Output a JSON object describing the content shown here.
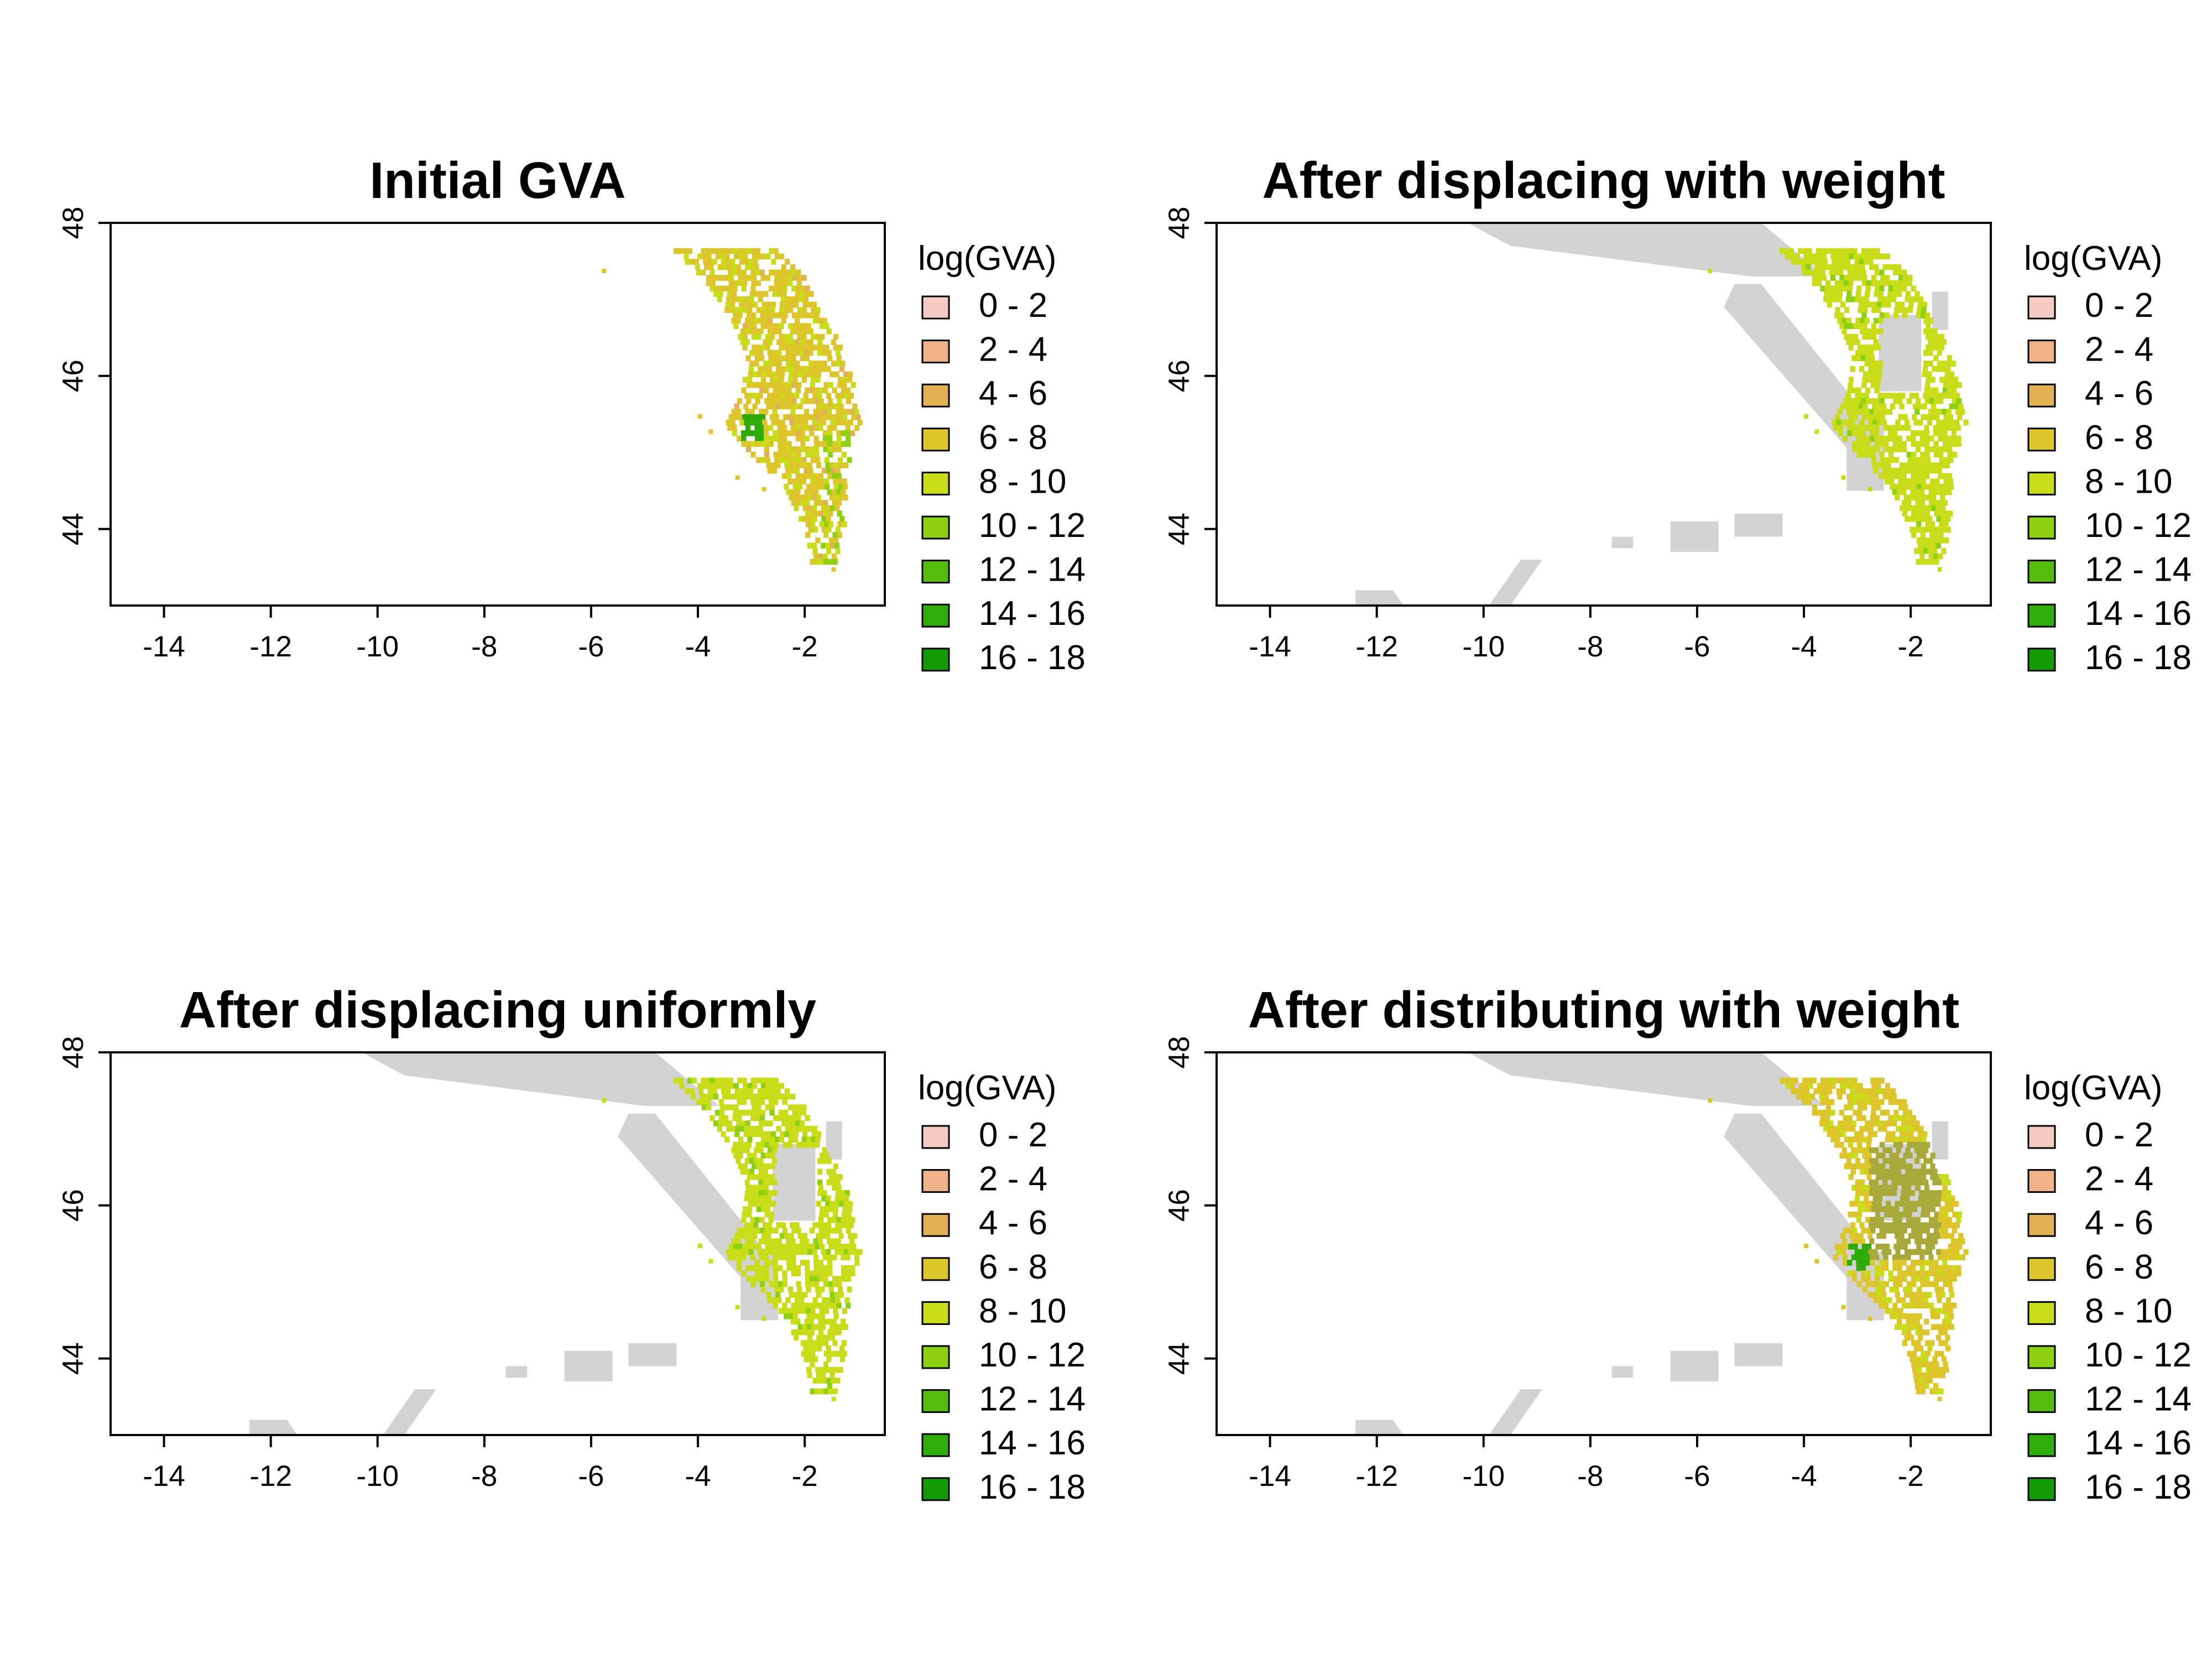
{
  "figure": {
    "legend_title": "log(GVA)",
    "legend_classes": [
      {
        "label": "0 - 2",
        "color": "#F3CBC3"
      },
      {
        "label": "2 - 4",
        "color": "#EDB287"
      },
      {
        "label": "4 - 6",
        "color": "#E2B153"
      },
      {
        "label": "6 - 8",
        "color": "#DCC62C"
      },
      {
        "label": "8 - 10",
        "color": "#C8DC19"
      },
      {
        "label": "10 - 12",
        "color": "#8ED012"
      },
      {
        "label": "12 - 14",
        "color": "#56BD0E"
      },
      {
        "label": "14 - 16",
        "color": "#2FAB0A"
      },
      {
        "label": "16 - 18",
        "color": "#129B05"
      }
    ],
    "excluded_zone_color": "#D3D3D3",
    "x_ticks": [
      "-14",
      "-12",
      "-10",
      "-8",
      "-6",
      "-4",
      "-2"
    ],
    "y_ticks": [
      "44",
      "46",
      "48"
    ],
    "x_tick_values": [
      -14,
      -12,
      -10,
      -8,
      -6,
      -4,
      -2
    ],
    "y_tick_values": [
      44,
      46,
      48
    ],
    "xlim": [
      -15,
      -0.5
    ],
    "ylim": [
      43,
      48
    ]
  },
  "panels": [
    {
      "title": "Initial GVA",
      "dominant_class": "6 - 8",
      "excluded_zones": false
    },
    {
      "title": "After displacing with weight",
      "dominant_class": "8 - 10",
      "excluded_zones": true
    },
    {
      "title": "After displacing uniformly",
      "dominant_class": "8 - 10",
      "excluded_zones": true
    },
    {
      "title": "After distributing with weight",
      "dominant_class": "6 - 8",
      "excluded_zones": true
    }
  ]
}
